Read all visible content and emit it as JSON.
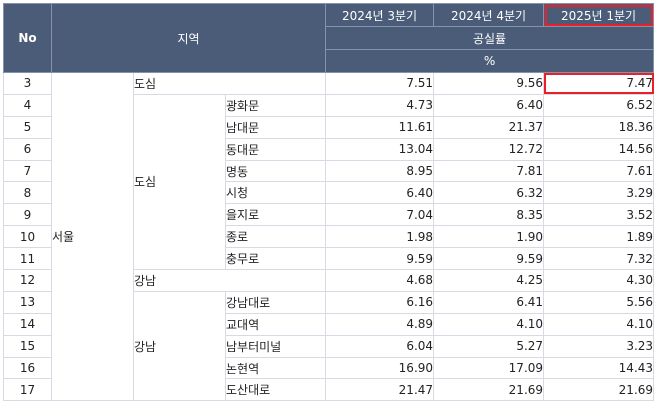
{
  "header": {
    "no": "No",
    "region": "지역",
    "periods": [
      "2024년 3분기",
      "2024년 4분기",
      "2025년 1분기"
    ],
    "metric": "공실률",
    "unit": "%"
  },
  "colors": {
    "header_bg": "#4a5c78",
    "highlight": "#e8202a"
  },
  "rows": [
    {
      "no": "3",
      "city": "",
      "district": "도심",
      "area": "",
      "v1": "7.51",
      "v2": "9.56",
      "v3": "7.47"
    },
    {
      "no": "4",
      "city": "",
      "district": "",
      "area": "광화문",
      "v1": "4.73",
      "v2": "6.40",
      "v3": "6.52"
    },
    {
      "no": "5",
      "city": "",
      "district": "",
      "area": "남대문",
      "v1": "11.61",
      "v2": "21.37",
      "v3": "18.36"
    },
    {
      "no": "6",
      "city": "",
      "district": "",
      "area": "동대문",
      "v1": "13.04",
      "v2": "12.72",
      "v3": "14.56"
    },
    {
      "no": "7",
      "city": "",
      "district": "",
      "area": "명동",
      "v1": "8.95",
      "v2": "7.81",
      "v3": "7.61"
    },
    {
      "no": "8",
      "city": "",
      "district": "도심",
      "area": "시청",
      "v1": "6.40",
      "v2": "6.32",
      "v3": "3.29"
    },
    {
      "no": "9",
      "city": "",
      "district": "",
      "area": "을지로",
      "v1": "7.04",
      "v2": "8.35",
      "v3": "3.52"
    },
    {
      "no": "10",
      "city": "서울",
      "district": "",
      "area": "종로",
      "v1": "1.98",
      "v2": "1.90",
      "v3": "1.89"
    },
    {
      "no": "11",
      "city": "",
      "district": "",
      "area": "충무로",
      "v1": "9.59",
      "v2": "9.59",
      "v3": "7.32"
    },
    {
      "no": "12",
      "city": "",
      "district": "강남",
      "area": "",
      "v1": "4.68",
      "v2": "4.25",
      "v3": "4.30"
    },
    {
      "no": "13",
      "city": "",
      "district": "",
      "area": "강남대로",
      "v1": "6.16",
      "v2": "6.41",
      "v3": "5.56"
    },
    {
      "no": "14",
      "city": "",
      "district": "",
      "area": "교대역",
      "v1": "4.89",
      "v2": "4.10",
      "v3": "4.10"
    },
    {
      "no": "15",
      "city": "",
      "district": "강남",
      "area": "남부터미널",
      "v1": "6.04",
      "v2": "5.27",
      "v3": "3.23"
    },
    {
      "no": "16",
      "city": "",
      "district": "",
      "area": "논현역",
      "v1": "16.90",
      "v2": "17.09",
      "v3": "14.43"
    },
    {
      "no": "17",
      "city": "",
      "district": "",
      "area": "도산대로",
      "v1": "21.47",
      "v2": "21.69",
      "v3": "21.69"
    }
  ]
}
